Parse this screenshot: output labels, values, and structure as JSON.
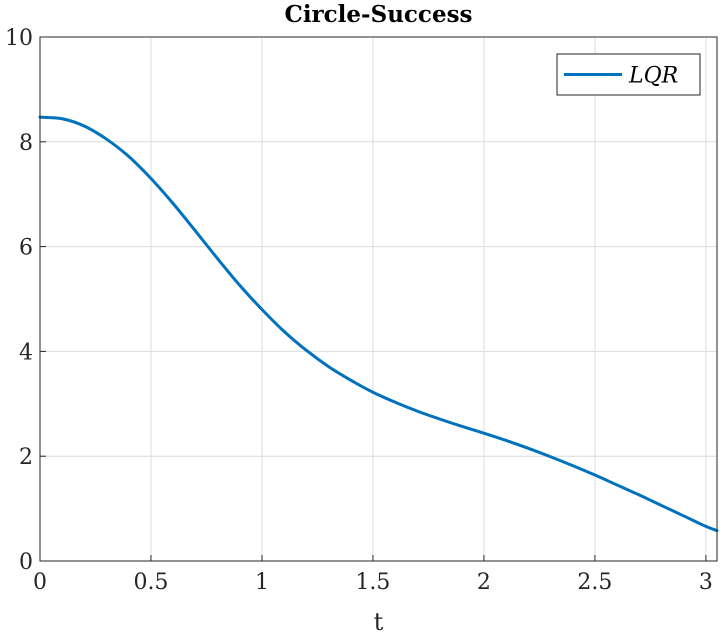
{
  "chart_data": {
    "type": "line",
    "title": "Circle-Success",
    "xlabel": "t",
    "ylabel": "",
    "xlim": [
      0,
      3.05
    ],
    "ylim": [
      0,
      10
    ],
    "xticks": [
      "0",
      "0.5",
      "1",
      "1.5",
      "2",
      "2.5",
      "3"
    ],
    "yticks": [
      "0",
      "2",
      "4",
      "6",
      "8",
      "10"
    ],
    "grid": true,
    "legend_position": "top-right",
    "series": [
      {
        "name": "LQR",
        "color": "#0072BD",
        "x": [
          0,
          0.1,
          0.2,
          0.3,
          0.4,
          0.5,
          0.6,
          0.7,
          0.8,
          0.9,
          1.0,
          1.1,
          1.2,
          1.3,
          1.4,
          1.5,
          1.6,
          1.7,
          1.8,
          1.9,
          2.0,
          2.1,
          2.2,
          2.3,
          2.4,
          2.5,
          2.6,
          2.7,
          2.8,
          2.9,
          3.0,
          3.05
        ],
        "y": [
          8.47,
          8.44,
          8.3,
          8.05,
          7.72,
          7.3,
          6.82,
          6.3,
          5.77,
          5.26,
          4.8,
          4.38,
          4.02,
          3.71,
          3.45,
          3.22,
          3.03,
          2.86,
          2.71,
          2.57,
          2.44,
          2.3,
          2.15,
          1.99,
          1.82,
          1.64,
          1.45,
          1.26,
          1.06,
          0.86,
          0.66,
          0.58
        ]
      }
    ]
  }
}
